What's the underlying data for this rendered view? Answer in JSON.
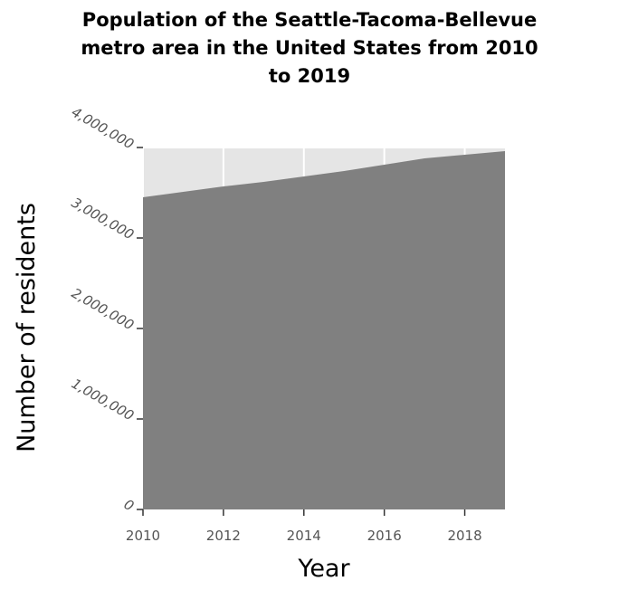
{
  "chart_data": {
    "type": "area",
    "title_lines": [
      "Population of the Seattle-Tacoma-Bellevue",
      "metro area in the United States from 2010",
      "to 2019"
    ],
    "xlabel": "Year",
    "ylabel": "Number of residents",
    "x": [
      2010,
      2011,
      2012,
      2013,
      2014,
      2015,
      2016,
      2017,
      2018,
      2019
    ],
    "values": [
      3450000,
      3510000,
      3570000,
      3620000,
      3680000,
      3740000,
      3810000,
      3880000,
      3920000,
      3960000
    ],
    "xlim": [
      2010,
      2019
    ],
    "ylim": [
      0,
      4000000
    ],
    "xticks": [
      2010,
      2012,
      2014,
      2016,
      2018
    ],
    "xtick_labels": [
      "2010",
      "2012",
      "2014",
      "2016",
      "2018"
    ],
    "yticks": [
      0,
      1000000,
      2000000,
      3000000,
      4000000
    ],
    "ytick_labels": [
      "0",
      "1,000,000",
      "2,000,000",
      "3,000,000",
      "4,000,000"
    ],
    "grid": true,
    "colors": {
      "background": "#e5e5e5",
      "area": "#808080",
      "grid": "#ffffff"
    }
  }
}
